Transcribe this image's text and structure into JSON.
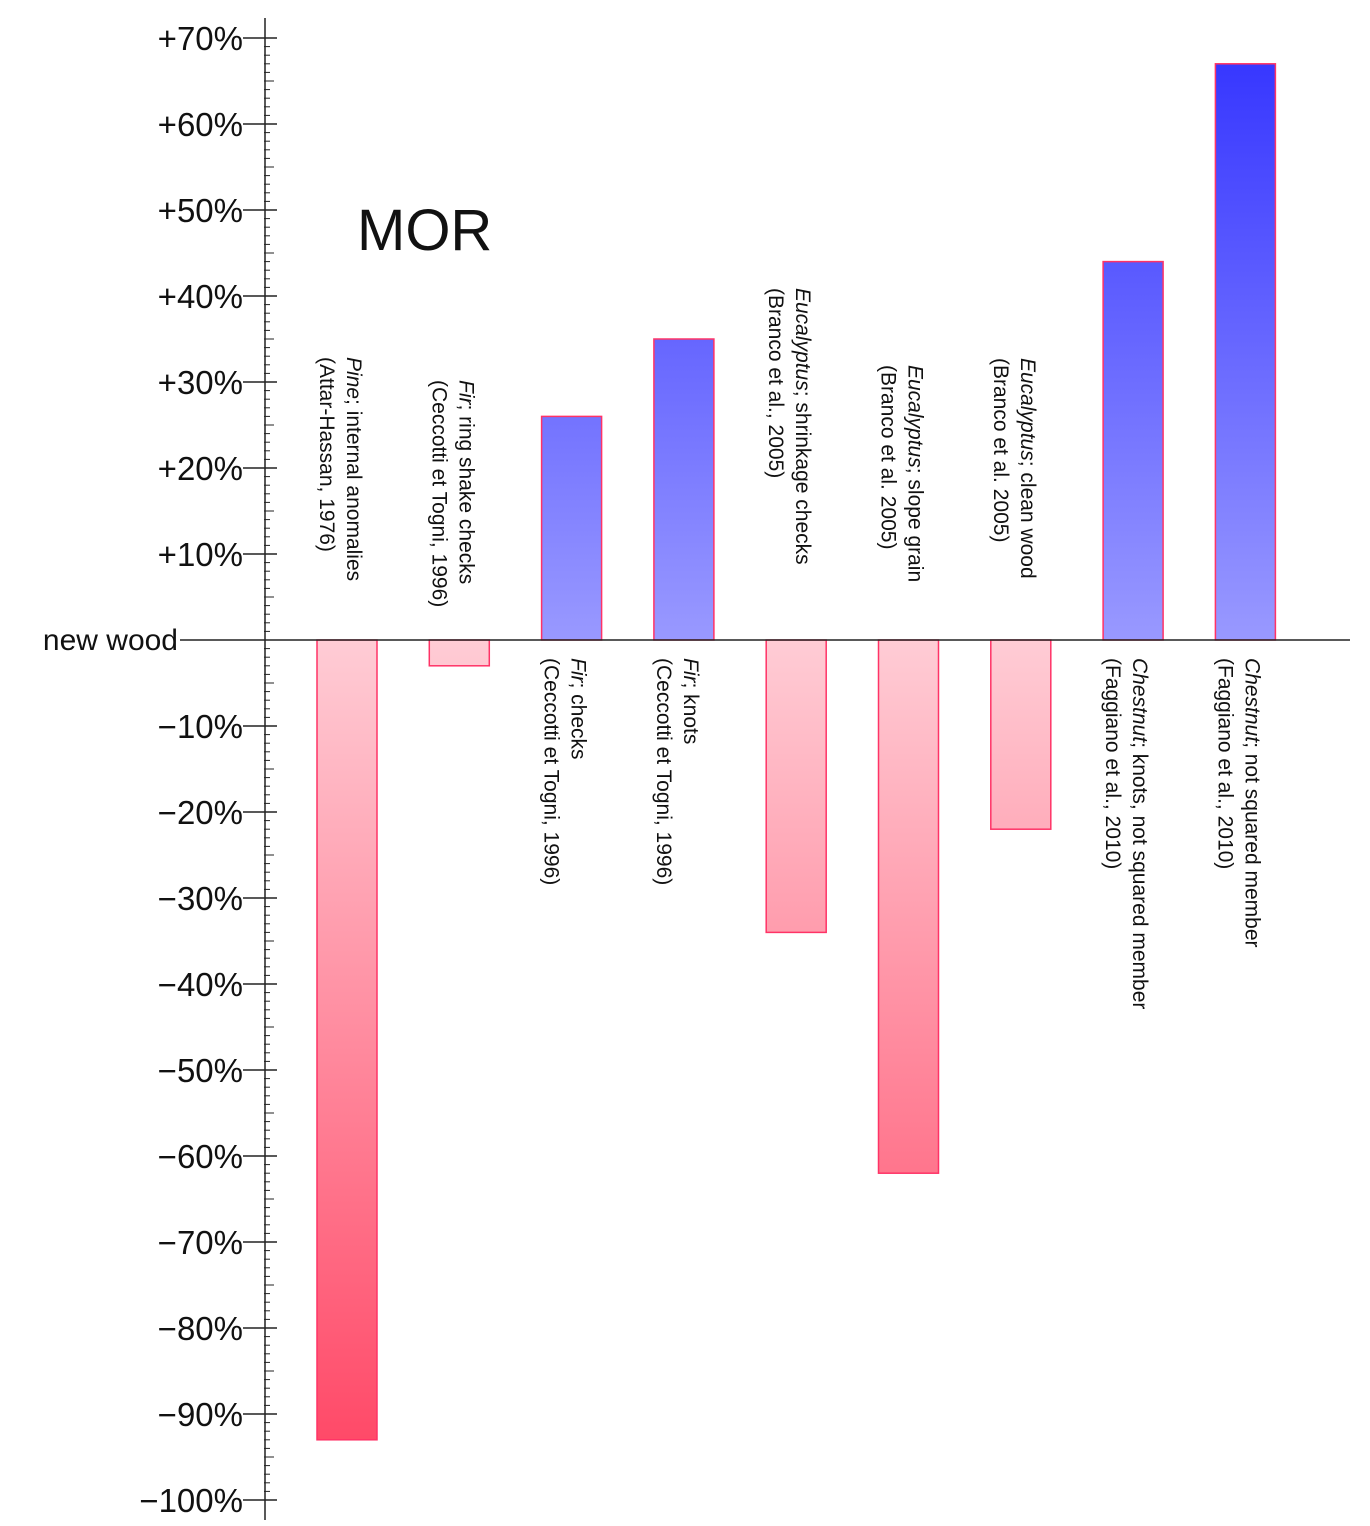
{
  "chart_data": {
    "type": "bar",
    "title": "MOR",
    "zero_label": "new wood",
    "ylim": [
      -100,
      70
    ],
    "y_ticks": [
      70,
      60,
      50,
      40,
      30,
      20,
      10,
      -10,
      -20,
      -30,
      -40,
      -50,
      -60,
      -70,
      -80,
      -90,
      -100
    ],
    "y_tick_labels": [
      "+70%",
      "+60%",
      "+50%",
      "+40%",
      "+30%",
      "+20%",
      "+10%",
      "−10%",
      "−20%",
      "−30%",
      "−40%",
      "−50%",
      "−60%",
      "−70%",
      "−80%",
      "−90%",
      "−100%"
    ],
    "categories": [
      {
        "species": "Pine",
        "desc": "; internal anomalies",
        "source": "(Attar-Hassan, 1976)"
      },
      {
        "species": "Fir",
        "desc": "; ring shake checks",
        "source": "(Ceccotti et Togni, 1996)"
      },
      {
        "species": "Fir",
        "desc": "; checks",
        "source": "(Ceccotti et Togni, 1996)"
      },
      {
        "species": "Fir",
        "desc": "; knots",
        "source": "(Ceccotti et Togni, 1996)"
      },
      {
        "species": "Eucalyptus",
        "desc": "; shrinkage checks",
        "source": "(Branco et al., 2005)"
      },
      {
        "species": "Eucalyptus",
        "desc": "; slope grain",
        "source": "(Branco et al. 2005)"
      },
      {
        "species": "Eucalyptus",
        "desc": "; clean wood",
        "source": "(Branco et al. 2005)"
      },
      {
        "species": "Chestnut",
        "desc": "; knots, not squared member",
        "source": "(Faggiano et al., 2010)"
      },
      {
        "species": "Chestnut",
        "desc": ";  not squared member",
        "source": "(Faggiano et al., 2010)"
      }
    ],
    "values": [
      -93,
      -3,
      26,
      35,
      -34,
      -62,
      -22,
      44,
      67
    ],
    "colors": {
      "positive_dark": "#3333ff",
      "positive_light": "#9999ff",
      "negative_dark": "#ff4060",
      "negative_light": "#ffccd5",
      "bar_stroke": "#ff3366",
      "axis": "#222222"
    }
  }
}
